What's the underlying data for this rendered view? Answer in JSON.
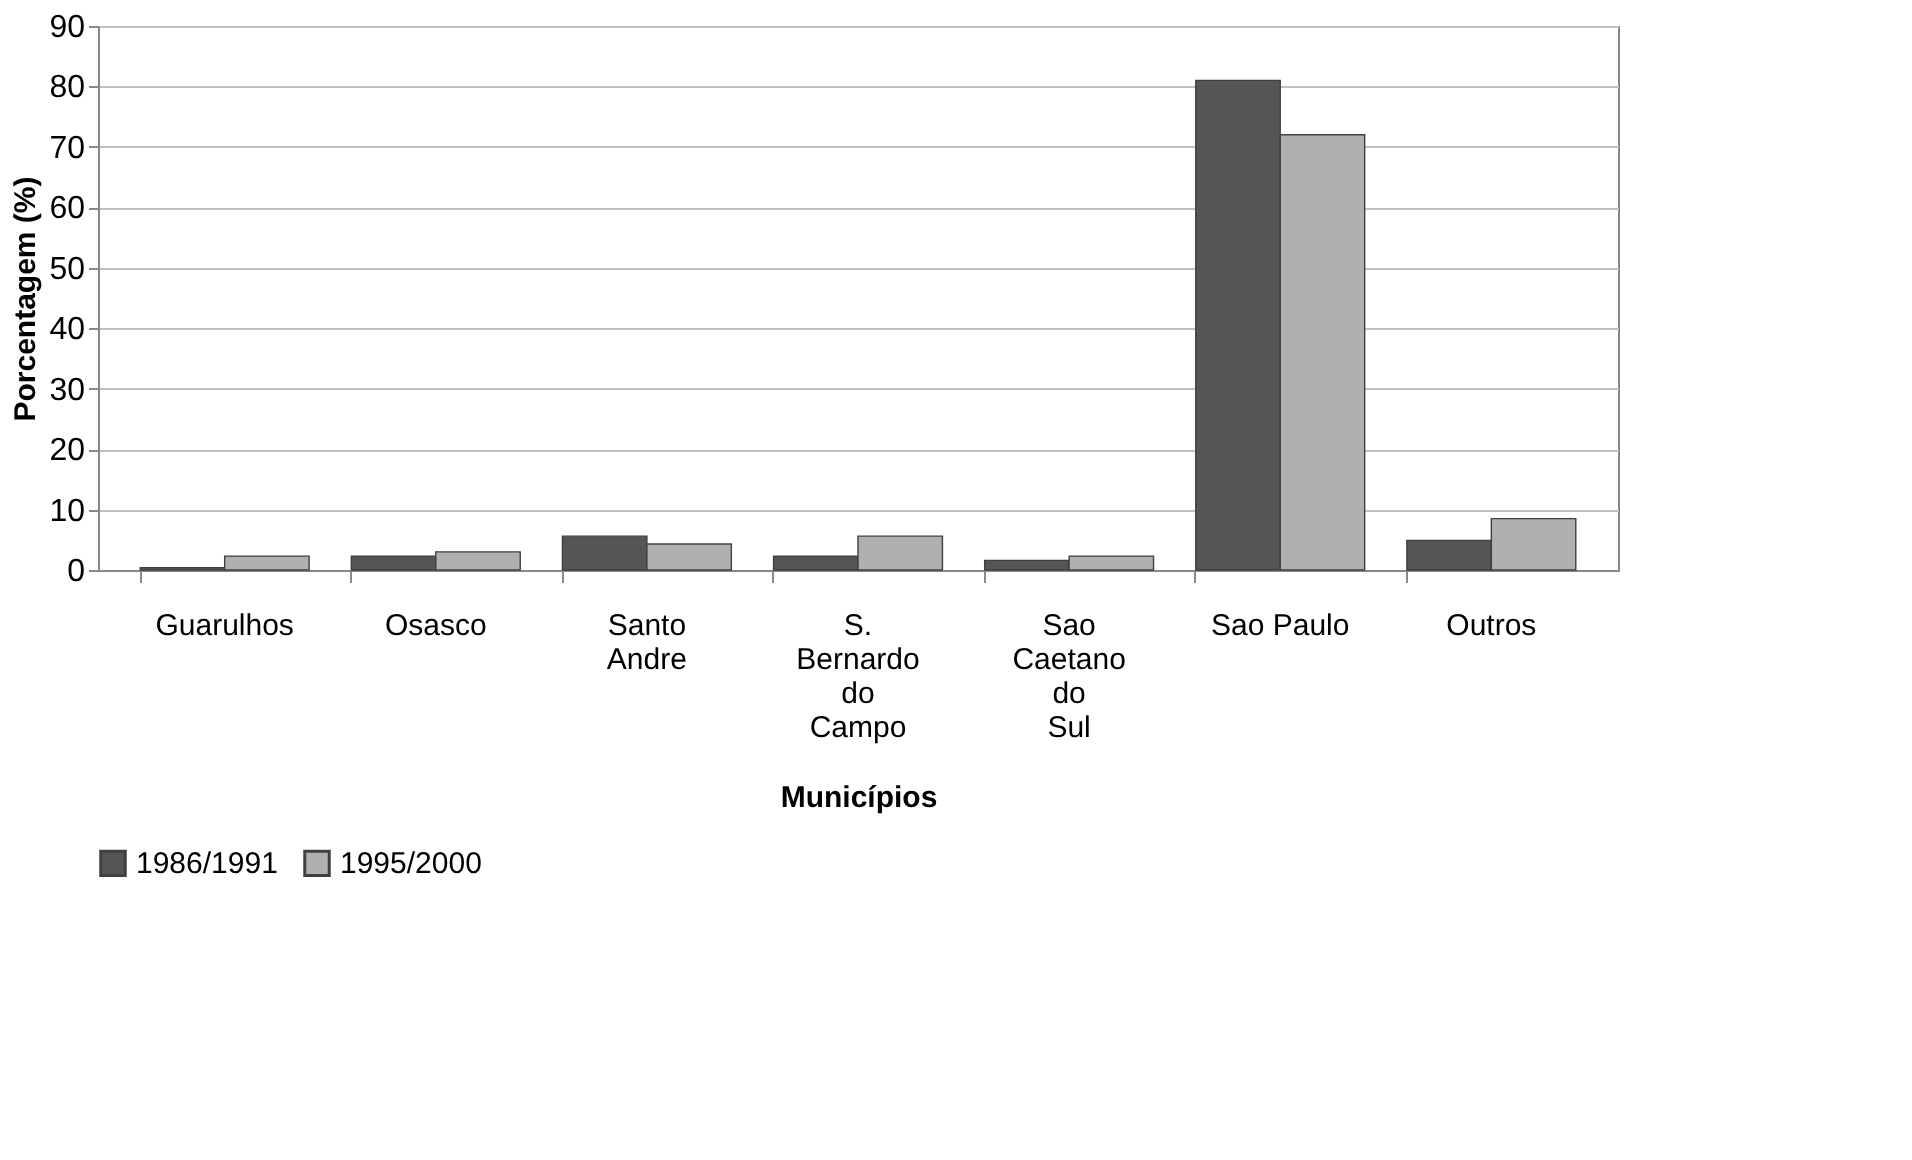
{
  "chart_data": {
    "type": "bar",
    "xlabel": "Municípios",
    "ylabel": "Porcentagem (%)",
    "categories": [
      "Guarulhos",
      "Osasco",
      "Santo Andre",
      "S. Bernardo do Campo",
      "Sao Caetano do Sul",
      "Sao Paulo",
      "Outros"
    ],
    "series": [
      {
        "name": "1986/1991",
        "color": "#555555",
        "values": [
          0.4,
          2.3,
          5.6,
          2.3,
          1.6,
          81,
          4.9
        ]
      },
      {
        "name": "1995/2000",
        "color": "#b0b0b0",
        "values": [
          2.3,
          3,
          4.3,
          5.6,
          2.3,
          72,
          8.5
        ]
      }
    ],
    "ylim": [
      0,
      90
    ],
    "yticks": [
      0,
      10,
      20,
      30,
      40,
      50,
      60,
      70,
      80,
      90
    ],
    "grid": "y",
    "legend": "bottom"
  }
}
